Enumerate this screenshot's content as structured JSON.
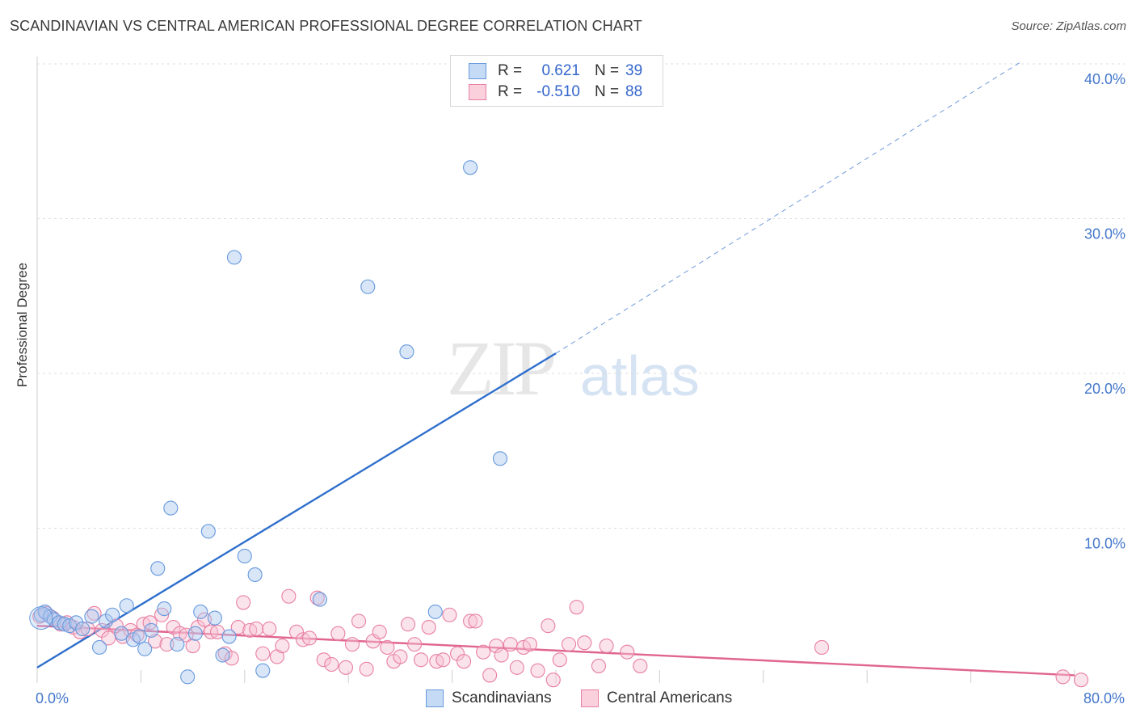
{
  "header": {
    "title": "SCANDINAVIAN VS CENTRAL AMERICAN PROFESSIONAL DEGREE CORRELATION CHART",
    "source": "Source: ZipAtlas.com"
  },
  "watermark": {
    "part1": "ZIP",
    "part2": "atlas"
  },
  "legend": {
    "rows": [
      {
        "r_label": "R =",
        "r_value": "0.621",
        "n_label": "N =",
        "n_value": "39",
        "color": "#aac8f0",
        "border": "#6699dd"
      },
      {
        "r_label": "R =",
        "r_value": "-0.510",
        "n_label": "N =",
        "n_value": "88",
        "color": "#f7c1d2",
        "border": "#e87fa3"
      }
    ],
    "bottom": [
      {
        "label": "Scandinavians",
        "color": "#c5dbf5",
        "border": "#6699dd"
      },
      {
        "label": "Central Americans",
        "color": "#f9d0dc",
        "border": "#e87fa3"
      }
    ]
  },
  "chart_data": {
    "type": "scatter",
    "title": "SCANDINAVIAN VS CENTRAL AMERICAN PROFESSIONAL DEGREE CORRELATION CHART",
    "xlabel": "",
    "ylabel": "Professional Degree",
    "xlim": [
      0,
      80
    ],
    "ylim": [
      0,
      41
    ],
    "x_tick_labels": [
      "0.0%",
      "80.0%"
    ],
    "y_ticks": [
      10,
      20,
      30,
      40
    ],
    "y_tick_labels": [
      "10.0%",
      "20.0%",
      "30.0%",
      "40.0%"
    ],
    "series": [
      {
        "name": "Scandinavians",
        "color": "#aac8f0",
        "stroke": "#6699dd",
        "line_color": "#2f6fcc",
        "trend": {
          "x0": 0,
          "y0": 1.0,
          "x1": 40,
          "y1": 21.3,
          "dash_to_x": 76,
          "dash_to_y": 40.2
        },
        "points": [
          [
            0.3,
            4.4
          ],
          [
            0.6,
            4.6
          ],
          [
            1.0,
            4.3
          ],
          [
            1.3,
            4.1
          ],
          [
            1.7,
            3.9
          ],
          [
            2.1,
            3.8
          ],
          [
            2.5,
            3.7
          ],
          [
            3.0,
            3.9
          ],
          [
            3.5,
            3.5
          ],
          [
            4.2,
            4.3
          ],
          [
            4.8,
            2.3
          ],
          [
            5.3,
            4.0
          ],
          [
            5.8,
            4.4
          ],
          [
            6.5,
            3.2
          ],
          [
            6.9,
            5.0
          ],
          [
            7.4,
            2.8
          ],
          [
            7.9,
            3.0
          ],
          [
            8.3,
            2.2
          ],
          [
            8.8,
            3.4
          ],
          [
            9.3,
            7.4
          ],
          [
            9.8,
            4.8
          ],
          [
            10.3,
            11.3
          ],
          [
            10.8,
            2.5
          ],
          [
            11.6,
            0.4
          ],
          [
            12.2,
            3.2
          ],
          [
            12.6,
            4.6
          ],
          [
            13.2,
            9.8
          ],
          [
            13.7,
            4.2
          ],
          [
            14.3,
            1.8
          ],
          [
            14.8,
            3.0
          ],
          [
            15.2,
            27.5
          ],
          [
            16.0,
            8.2
          ],
          [
            16.8,
            7.0
          ],
          [
            17.4,
            0.8
          ],
          [
            21.8,
            5.4
          ],
          [
            25.5,
            25.6
          ],
          [
            28.5,
            21.4
          ],
          [
            30.7,
            4.6
          ],
          [
            33.4,
            33.3
          ],
          [
            35.7,
            14.5
          ]
        ]
      },
      {
        "name": "Central Americans",
        "color": "#f7c1d2",
        "stroke": "#e87fa3",
        "line_color": "#e06590",
        "trend": {
          "x0": 0,
          "y0": 3.7,
          "x1": 80,
          "y1": 0.5
        },
        "points": [
          [
            0.2,
            4.3
          ],
          [
            0.7,
            4.5
          ],
          [
            1.2,
            4.2
          ],
          [
            1.8,
            3.8
          ],
          [
            2.3,
            3.9
          ],
          [
            2.8,
            3.6
          ],
          [
            3.3,
            3.3
          ],
          [
            3.9,
            3.5
          ],
          [
            4.4,
            4.5
          ],
          [
            5.0,
            3.4
          ],
          [
            5.5,
            2.9
          ],
          [
            6.1,
            3.7
          ],
          [
            6.6,
            3.0
          ],
          [
            7.2,
            3.4
          ],
          [
            7.7,
            3.1
          ],
          [
            8.2,
            3.8
          ],
          [
            8.7,
            3.9
          ],
          [
            9.1,
            2.7
          ],
          [
            9.6,
            4.4
          ],
          [
            10.0,
            2.5
          ],
          [
            10.5,
            3.6
          ],
          [
            11.0,
            3.2
          ],
          [
            11.5,
            3.1
          ],
          [
            12.0,
            2.4
          ],
          [
            12.4,
            3.6
          ],
          [
            12.9,
            4.1
          ],
          [
            13.4,
            3.3
          ],
          [
            13.9,
            3.3
          ],
          [
            14.5,
            1.9
          ],
          [
            15.0,
            1.6
          ],
          [
            15.5,
            3.6
          ],
          [
            15.9,
            5.2
          ],
          [
            16.4,
            3.4
          ],
          [
            16.9,
            3.5
          ],
          [
            17.4,
            1.9
          ],
          [
            17.9,
            3.5
          ],
          [
            18.5,
            1.7
          ],
          [
            18.9,
            2.4
          ],
          [
            19.4,
            5.6
          ],
          [
            20.0,
            3.3
          ],
          [
            20.5,
            2.8
          ],
          [
            21.0,
            2.9
          ],
          [
            21.6,
            5.5
          ],
          [
            22.1,
            1.5
          ],
          [
            22.7,
            1.2
          ],
          [
            23.2,
            3.2
          ],
          [
            23.8,
            1.0
          ],
          [
            24.3,
            2.5
          ],
          [
            24.8,
            4.0
          ],
          [
            25.4,
            0.9
          ],
          [
            25.9,
            2.7
          ],
          [
            26.4,
            3.3
          ],
          [
            27.0,
            2.3
          ],
          [
            27.5,
            1.4
          ],
          [
            28.0,
            1.7
          ],
          [
            28.6,
            3.8
          ],
          [
            29.1,
            2.5
          ],
          [
            29.6,
            1.5
          ],
          [
            30.2,
            3.6
          ],
          [
            30.8,
            1.4
          ],
          [
            31.3,
            1.5
          ],
          [
            31.8,
            4.4
          ],
          [
            32.4,
            1.9
          ],
          [
            32.9,
            1.4
          ],
          [
            33.4,
            4.0
          ],
          [
            33.8,
            4.0
          ],
          [
            34.4,
            2.0
          ],
          [
            34.9,
            0.5
          ],
          [
            35.4,
            2.4
          ],
          [
            35.8,
            1.8
          ],
          [
            36.5,
            2.5
          ],
          [
            37.0,
            1.0
          ],
          [
            37.5,
            2.3
          ],
          [
            38.0,
            2.5
          ],
          [
            38.6,
            0.8
          ],
          [
            39.4,
            3.7
          ],
          [
            39.8,
            0.2
          ],
          [
            40.3,
            1.5
          ],
          [
            41.0,
            2.5
          ],
          [
            41.6,
            4.9
          ],
          [
            42.2,
            2.6
          ],
          [
            43.3,
            1.1
          ],
          [
            43.9,
            2.4
          ],
          [
            45.5,
            2.0
          ],
          [
            46.5,
            1.1
          ],
          [
            60.5,
            2.3
          ],
          [
            79.1,
            0.4
          ],
          [
            80.5,
            0.2
          ]
        ]
      }
    ]
  }
}
